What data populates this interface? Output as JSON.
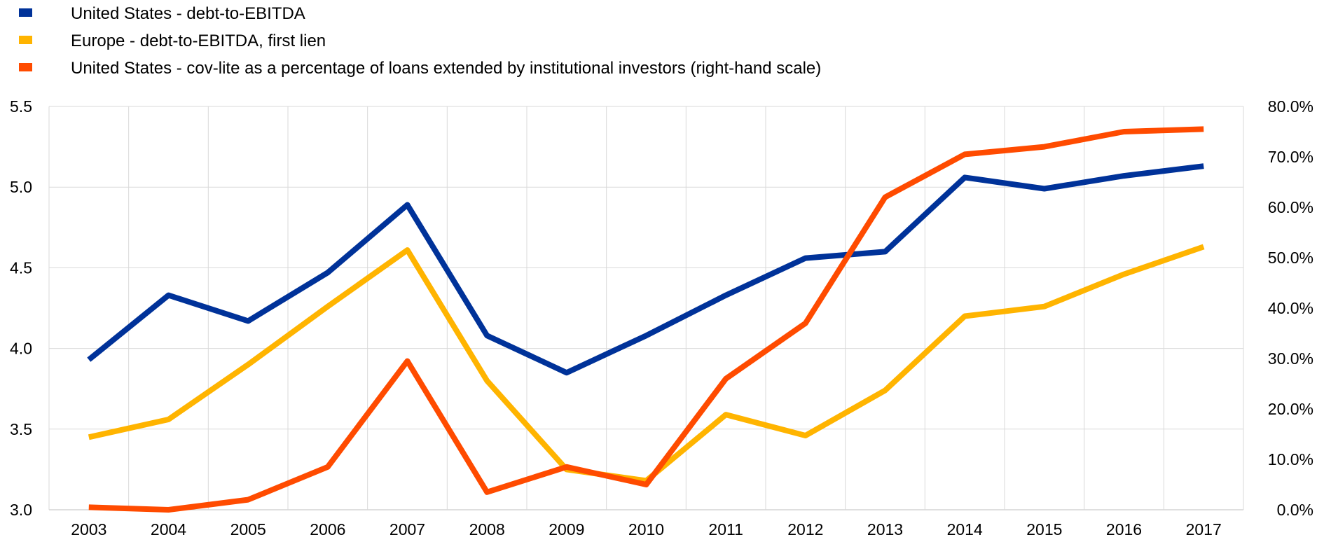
{
  "chart_data": {
    "type": "line",
    "title": "",
    "xlabel": "",
    "ylabel": "",
    "y2label": "",
    "categories": [
      "2003",
      "2004",
      "2005",
      "2006",
      "2007",
      "2008",
      "2009",
      "2010",
      "2011",
      "2012",
      "2013",
      "2014",
      "2015",
      "2016",
      "2017"
    ],
    "ylim": [
      3.0,
      5.5
    ],
    "yticks": [
      "3.0",
      "3.5",
      "4.0",
      "4.5",
      "5.0",
      "5.5"
    ],
    "y2lim": [
      0,
      80
    ],
    "y2ticks": [
      "0.0%",
      "10.0%",
      "20.0%",
      "30.0%",
      "40.0%",
      "50.0%",
      "60.0%",
      "70.0%",
      "80.0%"
    ],
    "grid": true,
    "legend_position": "top-left",
    "series": [
      {
        "name": "United States - debt-to-EBITDA",
        "color": "#003299",
        "axis": "left",
        "values": [
          3.93,
          4.33,
          4.17,
          4.47,
          4.89,
          4.08,
          3.85,
          4.08,
          4.33,
          4.56,
          4.6,
          5.06,
          4.99,
          5.07,
          5.13
        ]
      },
      {
        "name": "Europe - debt-to-EBITDA, first lien",
        "color": "#ffb400",
        "axis": "left",
        "values": [
          3.45,
          3.56,
          3.9,
          4.26,
          4.61,
          3.8,
          3.25,
          3.18,
          3.59,
          3.46,
          3.74,
          4.2,
          4.26,
          4.46,
          4.63
        ]
      },
      {
        "name": "United States - cov-lite as a percentage of loans extended by institutional investors (right-hand scale)",
        "color": "#ff4b00",
        "axis": "right",
        "values": [
          0.5,
          0.0,
          2.0,
          8.5,
          29.5,
          3.5,
          8.5,
          5.0,
          26.0,
          37.0,
          62.0,
          70.5,
          72.0,
          75.0,
          75.5
        ]
      }
    ]
  }
}
